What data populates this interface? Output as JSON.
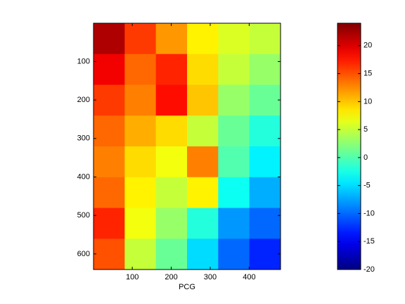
{
  "chart_data": {
    "type": "image",
    "colormap": "jet",
    "xlabel": "PCG",
    "xlim": [
      0.5,
      480.5
    ],
    "ylim": [
      0.5,
      640.5
    ],
    "y_reversed": true,
    "xticks": [
      100,
      200,
      300,
      400
    ],
    "yticks": [
      100,
      200,
      300,
      400,
      500,
      600
    ],
    "z": [
      [
        22,
        16,
        12,
        8,
        6,
        5
      ],
      [
        19,
        14,
        17,
        9,
        5,
        3
      ],
      [
        16,
        13,
        18,
        10,
        3,
        1
      ],
      [
        14,
        11,
        9,
        5,
        1,
        -2
      ],
      [
        13,
        9,
        7,
        13,
        0,
        -4
      ],
      [
        14,
        8,
        5,
        8,
        -3,
        -7
      ],
      [
        17,
        7,
        3,
        -2,
        -8,
        -10
      ],
      [
        15,
        5,
        1,
        -5,
        -10,
        -13
      ]
    ],
    "clim": [
      -20,
      24
    ],
    "colorbar_ticks": [
      -20,
      -15,
      -10,
      -5,
      0,
      5,
      10,
      15,
      20
    ]
  }
}
